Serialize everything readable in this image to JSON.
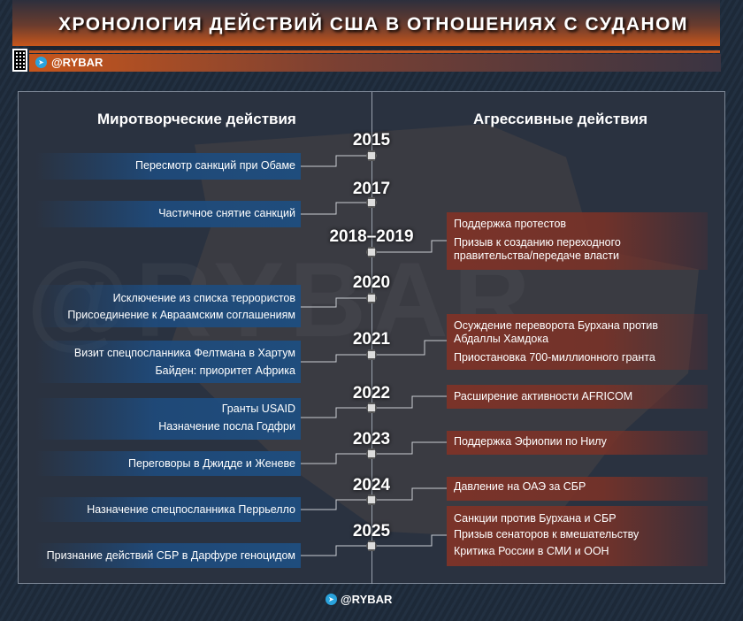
{
  "title": "ХРОНОЛОГИЯ ДЕЙСТВИЙ США В ОТНОШЕНИЯХ С СУДАНОМ",
  "brand": "@RYBAR",
  "watermark": "@RYBAR",
  "columns": {
    "left": "Миротворческие действия",
    "right": "Агрессивные действия"
  },
  "years": [
    "2015",
    "2017",
    "2018–2019",
    "2020",
    "2021",
    "2022",
    "2023",
    "2024",
    "2025"
  ],
  "peace": [
    [
      "Пересмотр санкций при Обаме"
    ],
    [
      "Частичное снятие санкций"
    ],
    [
      "Исключение из списка террористов",
      "Присоединение к Авраамским соглашениям"
    ],
    [
      "Визит спецпосланника Фелтмана в Хартум",
      "Байден: приоритет Африка"
    ],
    [
      "Гранты USAID",
      "Назначение посла Годфри"
    ],
    [
      "Переговоры в Джидде и Женеве"
    ],
    [
      "Назначение спецпосланника Перрьелло"
    ],
    [
      "Признание действий СБР в Дарфуре геноцидом"
    ]
  ],
  "aggressive": [
    [
      "Поддержка протестов",
      "Призыв к созданию переходного правительства/передаче власти"
    ],
    [
      "Осуждение переворота Бурхана против Абдаллы Хамдока",
      "Приостановка 700-миллионного гранта"
    ],
    [
      "Расширение активности AFRICOM"
    ],
    [
      "Поддержка Эфиопии по Нилу"
    ],
    [
      "Давление на ОАЭ за СБР"
    ],
    [
      "Санкции против Бурхана и СБР",
      "Призыв сенаторов к вмешательству",
      "Критика России в СМИ и ООН"
    ]
  ],
  "colors": {
    "peace": "#1f4d7d",
    "aggressive": "#7a3329",
    "accent": "#c7561c"
  }
}
